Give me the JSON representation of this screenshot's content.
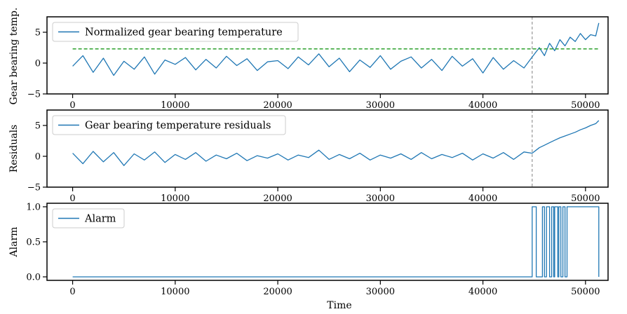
{
  "chart_data": [
    {
      "type": "line",
      "ylabel": "Gear bearing temp.",
      "xlabel": "",
      "xlim": [
        -2500,
        52200
      ],
      "ylim": [
        -5,
        7.5
      ],
      "xticks": [
        0,
        10000,
        20000,
        30000,
        40000,
        50000
      ],
      "xtick_labels": [
        "0",
        "10000",
        "20000",
        "30000",
        "40000",
        "50000"
      ],
      "yticks": [
        -5,
        0,
        5
      ],
      "ytick_labels": [
        "−5",
        "0",
        "5"
      ],
      "legend_loc": "upper-left",
      "series": [
        {
          "name": "Normalized gear bearing temperature",
          "color": "#1f77b4",
          "style": "solid",
          "x": [
            0,
            1000,
            2000,
            3000,
            4000,
            5000,
            6000,
            7000,
            8000,
            9000,
            10000,
            11000,
            12000,
            13000,
            14000,
            15000,
            16000,
            17000,
            18000,
            19000,
            20000,
            21000,
            22000,
            23000,
            24000,
            25000,
            26000,
            27000,
            28000,
            29000,
            30000,
            31000,
            32000,
            33000,
            34000,
            35000,
            36000,
            37000,
            38000,
            39000,
            40000,
            41000,
            42000,
            43000,
            44000,
            44800,
            45500,
            46000,
            46500,
            47000,
            47500,
            48000,
            48500,
            49000,
            49500,
            50000,
            50500,
            51000,
            51300
          ],
          "y": [
            -0.5,
            1.2,
            -1.5,
            0.8,
            -2.0,
            0.3,
            -1.0,
            1.0,
            -1.8,
            0.5,
            -0.2,
            0.9,
            -1.1,
            0.6,
            -0.8,
            1.1,
            -0.4,
            0.7,
            -1.2,
            0.2,
            0.4,
            -0.9,
            1.0,
            -0.3,
            1.5,
            -0.6,
            0.8,
            -1.4,
            0.5,
            -0.7,
            1.2,
            -1.0,
            0.3,
            1.0,
            -0.8,
            0.6,
            -1.2,
            1.1,
            -0.5,
            0.7,
            -1.6,
            0.9,
            -1.0,
            0.4,
            -0.8,
            1.0,
            2.5,
            1.2,
            3.2,
            2.0,
            3.8,
            2.8,
            4.2,
            3.5,
            4.8,
            3.8,
            4.6,
            4.4,
            6.5
          ]
        },
        {
          "name": "",
          "color": "#2ca02c",
          "style": "dashed",
          "x": [
            0,
            51300
          ],
          "y": [
            2.3,
            2.3
          ]
        }
      ],
      "vline": {
        "x": 44800,
        "color": "#9e9e9e",
        "style": "dashed"
      }
    },
    {
      "type": "line",
      "ylabel": "Residuals",
      "xlabel": "",
      "xlim": [
        -2500,
        52200
      ],
      "ylim": [
        -5,
        7.5
      ],
      "xticks": [
        0,
        10000,
        20000,
        30000,
        40000,
        50000
      ],
      "xtick_labels": [
        "0",
        "10000",
        "20000",
        "30000",
        "40000",
        "50000"
      ],
      "yticks": [
        -5,
        0,
        5
      ],
      "ytick_labels": [
        "−5",
        "0",
        "5"
      ],
      "legend_loc": "upper-left",
      "series": [
        {
          "name": "Gear bearing temperature residuals",
          "color": "#1f77b4",
          "style": "solid",
          "x": [
            0,
            1000,
            2000,
            3000,
            4000,
            5000,
            6000,
            7000,
            8000,
            9000,
            10000,
            11000,
            12000,
            13000,
            14000,
            15000,
            16000,
            17000,
            18000,
            19000,
            20000,
            21000,
            22000,
            23000,
            24000,
            25000,
            26000,
            27000,
            28000,
            29000,
            30000,
            31000,
            32000,
            33000,
            34000,
            35000,
            36000,
            37000,
            38000,
            39000,
            40000,
            41000,
            42000,
            43000,
            44000,
            44800,
            45500,
            46000,
            46500,
            47000,
            47500,
            48000,
            48500,
            49000,
            49500,
            50000,
            50500,
            51000,
            51300
          ],
          "y": [
            0.5,
            -1.2,
            0.8,
            -0.9,
            0.6,
            -1.5,
            0.4,
            -0.6,
            0.7,
            -1.0,
            0.3,
            -0.5,
            0.6,
            -0.8,
            0.2,
            -0.4,
            0.5,
            -0.7,
            0.1,
            -0.3,
            0.4,
            -0.6,
            0.2,
            -0.2,
            1.0,
            -0.5,
            0.3,
            -0.4,
            0.5,
            -0.6,
            0.2,
            -0.3,
            0.4,
            -0.5,
            0.6,
            -0.4,
            0.3,
            -0.2,
            0.5,
            -0.6,
            0.4,
            -0.3,
            0.6,
            -0.5,
            0.7,
            0.5,
            1.4,
            1.8,
            2.2,
            2.6,
            3.0,
            3.3,
            3.6,
            3.9,
            4.3,
            4.6,
            5.0,
            5.3,
            5.8
          ]
        }
      ],
      "vline": {
        "x": 44800,
        "color": "#9e9e9e",
        "style": "dashed"
      }
    },
    {
      "type": "line",
      "ylabel": "Alarm",
      "xlabel": "Time",
      "xlim": [
        -2500,
        52200
      ],
      "ylim": [
        -0.05,
        1.05
      ],
      "xticks": [
        0,
        10000,
        20000,
        30000,
        40000,
        50000
      ],
      "xtick_labels": [
        "0",
        "10000",
        "20000",
        "30000",
        "40000",
        "50000"
      ],
      "yticks": [
        0.0,
        0.5,
        1.0
      ],
      "ytick_labels": [
        "0.0",
        "0.5",
        "1.0"
      ],
      "legend_loc": "upper-left",
      "series": [
        {
          "name": "Alarm",
          "color": "#1f77b4",
          "style": "step",
          "x": [
            0,
            44800,
            44800,
            45200,
            45200,
            45800,
            45800,
            46000,
            46000,
            46200,
            46200,
            46500,
            46500,
            46700,
            46700,
            46900,
            46900,
            47000,
            47000,
            47300,
            47300,
            47400,
            47400,
            47600,
            47600,
            47800,
            47800,
            48000,
            48000,
            48200,
            48200,
            51300,
            51300
          ],
          "y": [
            0,
            0,
            1,
            1,
            0,
            0,
            1,
            1,
            0,
            0,
            1,
            1,
            0,
            0,
            1,
            1,
            0,
            0,
            1,
            1,
            0,
            0,
            1,
            1,
            0,
            0,
            1,
            1,
            0,
            0,
            1,
            1,
            0
          ]
        }
      ]
    }
  ]
}
